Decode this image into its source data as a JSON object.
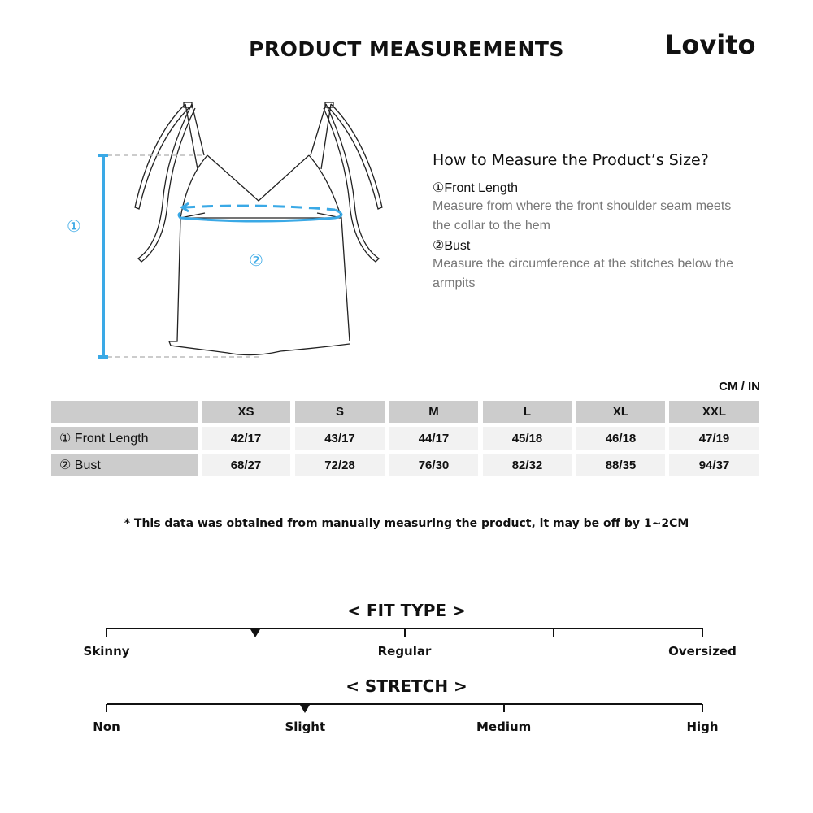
{
  "header": {
    "title": "PRODUCT MEASUREMENTS",
    "brand": "Lovito"
  },
  "illustration": {
    "marker_1": "①",
    "marker_2": "②",
    "accent_color": "#3aa9e6"
  },
  "guide": {
    "title": "How to Measure the Product’s Size?",
    "items": [
      {
        "heading": "①Front Length",
        "description": "Measure from where the front shoulder seam meets the collar to the hem"
      },
      {
        "heading": "②Bust",
        "description": "Measure the circumference at the stitches below the armpits"
      }
    ]
  },
  "table": {
    "unit": "CM / IN",
    "sizes": [
      "XS",
      "S",
      "M",
      "L",
      "XL",
      "XXL"
    ],
    "rows": [
      {
        "label": "① Front Length",
        "values": [
          "42/17",
          "43/17",
          "44/17",
          "45/18",
          "46/18",
          "47/19"
        ]
      },
      {
        "label": "② Bust",
        "values": [
          "68/27",
          "72/28",
          "76/30",
          "82/32",
          "88/35",
          "94/37"
        ]
      }
    ]
  },
  "note": "* This data was obtained from manually measuring the product, it may be off by 1~2CM",
  "fit_type": {
    "title": "< FIT TYPE >",
    "labels": [
      "Skinny",
      "Regular",
      "Oversized"
    ],
    "level": 0.25
  },
  "stretch": {
    "title": "< STRETCH >",
    "labels": [
      "Non",
      "Slight",
      "Medium",
      "High"
    ],
    "level": 0.3333
  }
}
